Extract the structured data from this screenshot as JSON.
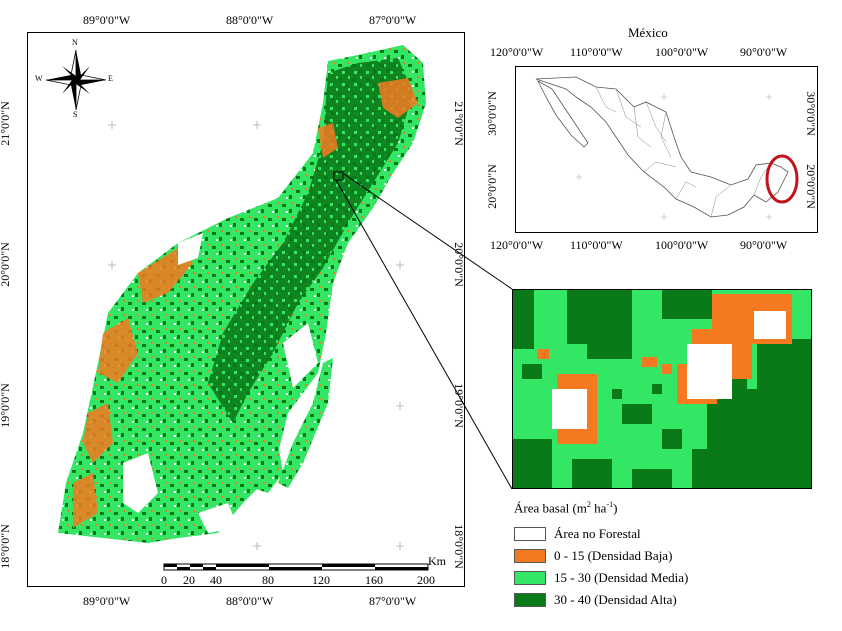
{
  "main_map": {
    "top_lon_labels": [
      "89°0'0\"W",
      "88°0'0\"W",
      "87°0'0\"W"
    ],
    "bottom_lon_labels": [
      "89°0'0\"W",
      "88°0'0\"W",
      "87°0'0\"W"
    ],
    "left_lat_labels": [
      "21°0'0\"N",
      "20°0'0\"N",
      "19°0'0\"N",
      "18°0'0\"N"
    ],
    "right_lat_labels": [
      "21°0'0\"N",
      "20°0'0\"N",
      "19°0'0\"N",
      "18°0'0\"N"
    ],
    "compass": {
      "n": "N",
      "s": "S",
      "e": "E",
      "w": "W"
    },
    "scale_bar": {
      "unit": "Km",
      "ticks": [
        "0",
        "20",
        "40",
        "80",
        "120",
        "160",
        "200"
      ]
    }
  },
  "inset_map": {
    "title": "México",
    "top_lon_labels": [
      "120°0'0\"W",
      "110°0'0\"W",
      "100°0'0\"W",
      "90°0'0\"W"
    ],
    "bottom_lon_labels": [
      "120°0'0\"W",
      "110°0'0\"W",
      "100°0'0\"W",
      "90°0'0\"W"
    ],
    "left_lat_labels": [
      "30°0'0\"N",
      "20°0'0\"N"
    ],
    "right_lat_labels": [
      "30°0'0\"N",
      "20°0'0\"N"
    ],
    "highlight_color": "#c0141c"
  },
  "legend": {
    "title_prefix": "Área basal (m",
    "title_sup1": "2",
    "title_middle": " ha",
    "title_sup2": "-1",
    "title_suffix": ")",
    "items": [
      {
        "label": "Área no Forestal",
        "color": "#ffffff"
      },
      {
        "label": "0 - 15  (Densidad Baja)",
        "color": "#f47920"
      },
      {
        "label": "15 - 30 (Densidad Media)",
        "color": "#33e664"
      },
      {
        "label": "30 - 40 (Densidad Alta)",
        "color": "#0a7a19"
      }
    ]
  }
}
